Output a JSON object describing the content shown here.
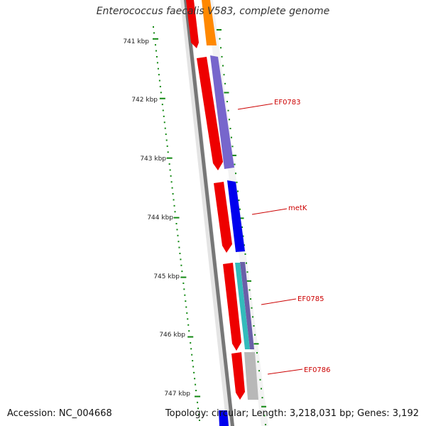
{
  "title": "Enterococcus faecalis V583, complete genome",
  "footer": {
    "accession": "Accession: NC_004668",
    "summary": "Topology: circular; Length: 3,218,031 bp; Genes: 3,192"
  },
  "ruler": {
    "labels": [
      "741 kbp",
      "742 kbp",
      "743 kbp",
      "744 kbp",
      "745 kbp",
      "746 kbp",
      "747 kbp"
    ],
    "tick_color": "#118811"
  },
  "genes": [
    {
      "label": "EF0783",
      "color": "#7766cc"
    },
    {
      "label": "metK",
      "color": "#0000ee"
    },
    {
      "label": "EF0785",
      "color": "#33bbbb"
    },
    {
      "label": "EF0786",
      "color": "#b8b8b8"
    }
  ],
  "colors": {
    "strand_red": "#ee0000",
    "orange": "#ff8800",
    "backbone": "#888888",
    "label_line": "#cc0000"
  }
}
